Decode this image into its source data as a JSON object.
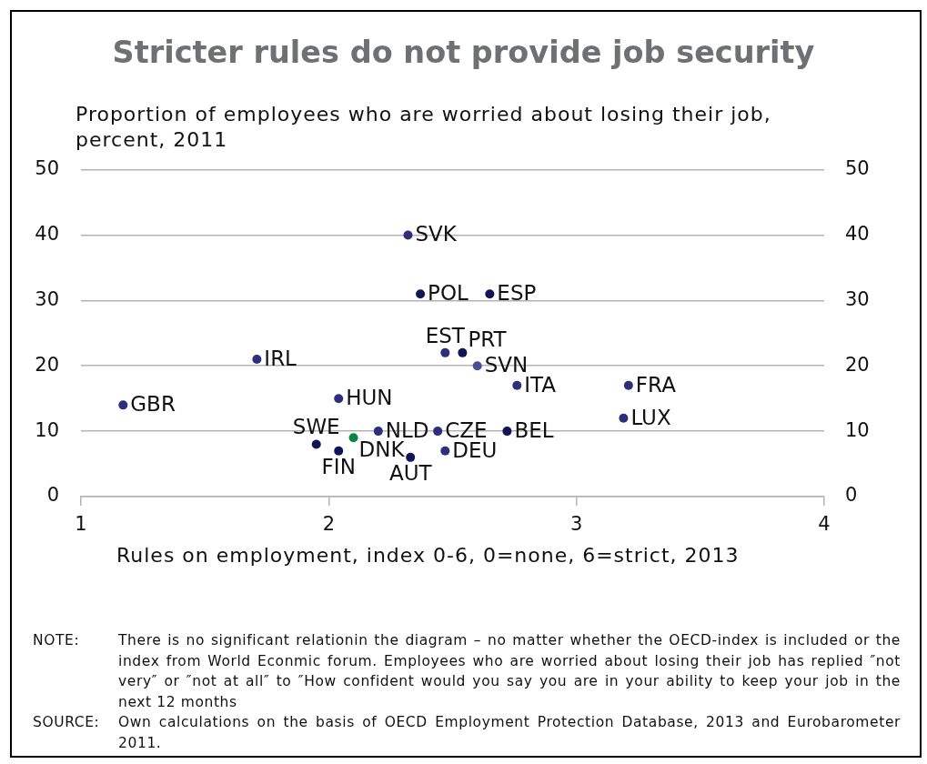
{
  "chart_data": {
    "type": "scatter",
    "title": "Stricter rules do not provide job security",
    "ylabel": "Proportion of employees who are worried about losing their job, percent, 2011",
    "xlabel": "Rules on employment, index 0-6, 0=none, 6=strict, 2013",
    "xlim": [
      1,
      4
    ],
    "xticks": [
      1,
      2,
      3,
      4
    ],
    "ylim": [
      0,
      50
    ],
    "yticks": [
      0,
      10,
      20,
      30,
      40,
      50
    ],
    "y2lim": [
      0,
      50
    ],
    "y2ticks": [
      0,
      10,
      20,
      30,
      40,
      50
    ],
    "grid": "y",
    "marker": "circle",
    "series": [
      {
        "name": "GBR",
        "color": "#2c2f7c",
        "x": [
          1.17
        ],
        "values": [
          14
        ]
      },
      {
        "name": "IRL",
        "color": "#2c2f7c",
        "x": [
          1.71
        ],
        "values": [
          21
        ]
      },
      {
        "name": "SWE",
        "color": "#0e1558",
        "x": [
          1.95
        ],
        "values": [
          8
        ]
      },
      {
        "name": "FIN",
        "color": "#0e1558",
        "x": [
          2.04
        ],
        "values": [
          7
        ]
      },
      {
        "name": "HUN",
        "color": "#2c2f7c",
        "x": [
          2.04
        ],
        "values": [
          15
        ]
      },
      {
        "name": "DNK",
        "color": "#0a8546",
        "x": [
          2.1
        ],
        "values": [
          9
        ]
      },
      {
        "name": "NLD",
        "color": "#2c2f7c",
        "x": [
          2.2
        ],
        "values": [
          10
        ]
      },
      {
        "name": "SVK",
        "color": "#2c2f7c",
        "x": [
          2.32
        ],
        "values": [
          40
        ]
      },
      {
        "name": "AUT",
        "color": "#0e1558",
        "x": [
          2.33
        ],
        "values": [
          6
        ]
      },
      {
        "name": "POL",
        "color": "#0e1558",
        "x": [
          2.37
        ],
        "values": [
          31
        ]
      },
      {
        "name": "CZE",
        "color": "#2c2f7c",
        "x": [
          2.44
        ],
        "values": [
          10
        ]
      },
      {
        "name": "EST",
        "color": "#2c2f7c",
        "x": [
          2.47
        ],
        "values": [
          22
        ]
      },
      {
        "name": "DEU",
        "color": "#2c2f7c",
        "x": [
          2.47
        ],
        "values": [
          7
        ]
      },
      {
        "name": "PRT",
        "color": "#0e1558",
        "x": [
          2.54
        ],
        "values": [
          22
        ]
      },
      {
        "name": "SVN",
        "color": "#4b4d99",
        "x": [
          2.6
        ],
        "values": [
          20
        ]
      },
      {
        "name": "ESP",
        "color": "#0e1558",
        "x": [
          2.65
        ],
        "values": [
          31
        ]
      },
      {
        "name": "BEL",
        "color": "#0e1558",
        "x": [
          2.72
        ],
        "values": [
          10
        ]
      },
      {
        "name": "ITA",
        "color": "#2c2f7c",
        "x": [
          2.76
        ],
        "values": [
          17
        ]
      },
      {
        "name": "LUX",
        "color": "#2c2f7c",
        "x": [
          3.19
        ],
        "values": [
          12
        ]
      },
      {
        "name": "FRA",
        "color": "#2c2f7c",
        "x": [
          3.21
        ],
        "values": [
          17
        ]
      }
    ],
    "annotations": [
      "NOTE: There is no significant relationin the diagram – no matter whether the OECD-index is included or the index from World Econmic forum. Employees who are worried about losing their job has replied ″not very″ or ″not at all″ to ″How confident would you say you are in your ability to keep your job in the next 12 months",
      "SOURCE: Own calculations on the basis of OECD Employment Protection Database, 2013 and Eurobarometer 2011."
    ]
  }
}
